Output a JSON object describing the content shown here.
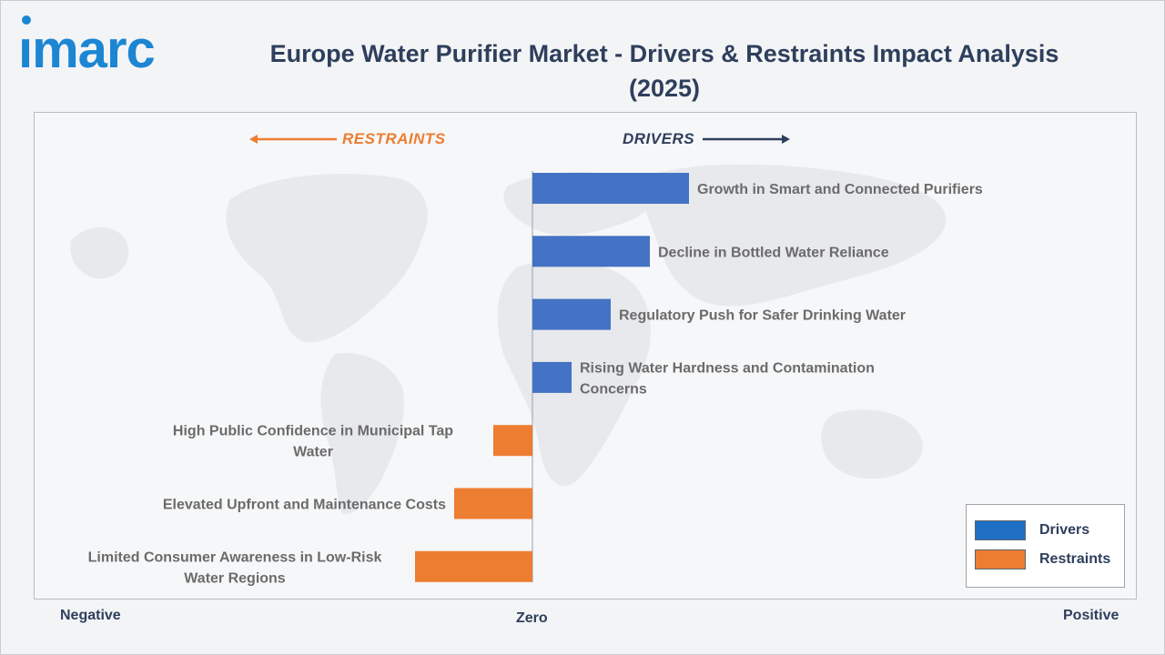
{
  "brand": {
    "logo_text": "imarc",
    "color": "#1c86d3"
  },
  "header": {
    "title": "Europe Water Purifier Market - Drivers & Restraints Impact Analysis (2025)"
  },
  "directions": {
    "restraints": "RESTRAINTS",
    "drivers": "DRIVERS"
  },
  "colors": {
    "drivers": "#4472c4",
    "restraints": "#ed7d31",
    "label": "#6b6b6b",
    "title": "#2e3f5c"
  },
  "chart_data": {
    "type": "bar",
    "orientation": "horizontal",
    "title": "Europe Water Purifier Market - Drivers & Restraints Impact Analysis (2025)",
    "x_axis_labels": {
      "left": "Negative",
      "center": "Zero",
      "right": "Positive"
    },
    "xlim": [
      -4,
      4
    ],
    "grid": false,
    "legend_position": "bottom-right",
    "bars": [
      {
        "label": "Growth in Smart and Connected Purifiers",
        "value": 4,
        "series": "Drivers"
      },
      {
        "label": "Decline in Bottled Water Reliance",
        "value": 3,
        "series": "Drivers"
      },
      {
        "label": "Regulatory Push for Safer Drinking Water",
        "value": 2,
        "series": "Drivers"
      },
      {
        "label": "Rising Water Hardness and Contamination Concerns",
        "value": 1,
        "series": "Drivers"
      },
      {
        "label": "High Public Confidence in Municipal Tap Water",
        "value": -1,
        "series": "Restraints"
      },
      {
        "label": "Elevated Upfront and Maintenance Costs",
        "value": -2,
        "series": "Restraints"
      },
      {
        "label": "Limited Consumer Awareness in Low-Risk Water Regions",
        "value": -3,
        "series": "Restraints"
      }
    ],
    "legend": [
      {
        "name": "Drivers",
        "color": "#4472c4"
      },
      {
        "name": "Restraints",
        "color": "#ed7d31"
      }
    ]
  }
}
